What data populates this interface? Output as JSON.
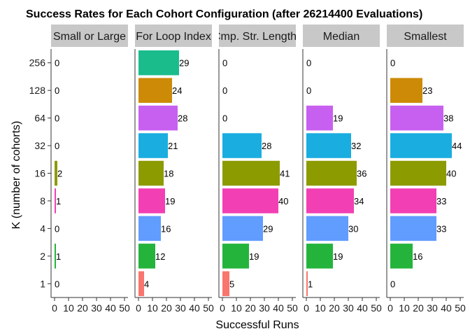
{
  "chart_data": {
    "type": "bar",
    "orientation": "horizontal",
    "title": "Success Rates for Each Cohort Configuration (after 26214400 Evaluations)",
    "xlabel": "Successful Runs",
    "ylabel": "K (number of cohorts)",
    "categories": [
      "1",
      "2",
      "4",
      "8",
      "16",
      "32",
      "64",
      "128",
      "256"
    ],
    "xlim": [
      0,
      50
    ],
    "x_ticks": [
      "0",
      "10",
      "20",
      "30",
      "40",
      "50"
    ],
    "category_colors": {
      "1": "#F8766D",
      "2": "#24B43C",
      "4": "#619CFF",
      "8": "#F23FB4",
      "16": "#8C9B00",
      "32": "#1AADE0",
      "64": "#C760F0",
      "128": "#CC8A06",
      "256": "#1ABC8C"
    },
    "strip_background": "#C8C8C8",
    "grid": false,
    "facets": [
      {
        "label": "Small or Large",
        "values": [
          0,
          1,
          0,
          1,
          2,
          0,
          0,
          0,
          0
        ]
      },
      {
        "label": "For Loop Index",
        "values": [
          4,
          12,
          16,
          19,
          18,
          21,
          28,
          24,
          29
        ]
      },
      {
        "label": "Cmp. Str. Lengths",
        "values": [
          5,
          19,
          29,
          40,
          41,
          28,
          0,
          0,
          0
        ]
      },
      {
        "label": "Median",
        "values": [
          1,
          19,
          30,
          34,
          36,
          32,
          19,
          0,
          0
        ]
      },
      {
        "label": "Smallest",
        "values": [
          0,
          16,
          33,
          33,
          40,
          44,
          38,
          23,
          0
        ]
      }
    ]
  }
}
